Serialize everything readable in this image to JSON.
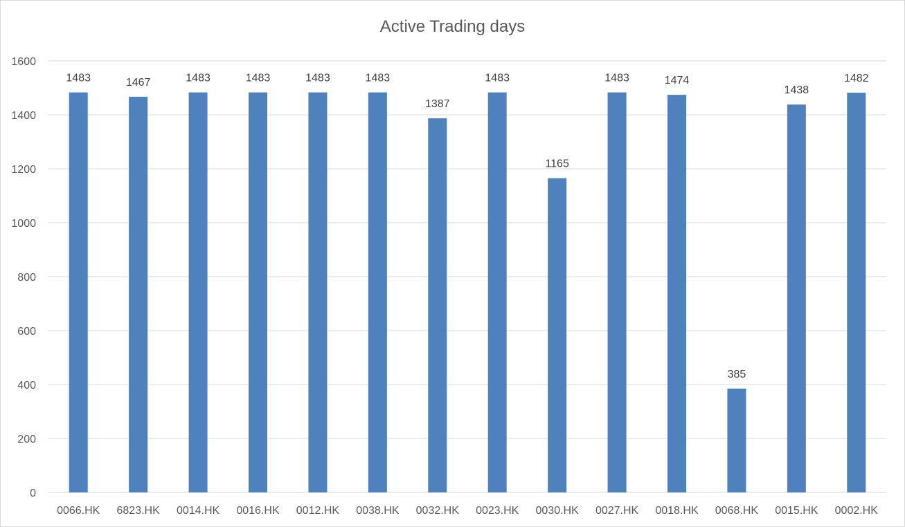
{
  "chart_data": {
    "type": "bar",
    "title": "Active Trading days",
    "xlabel": "",
    "ylabel": "",
    "categories": [
      "0066.HK",
      "6823.HK",
      "0014.HK",
      "0016.HK",
      "0012.HK",
      "0038.HK",
      "0032.HK",
      "0023.HK",
      "0030.HK",
      "0027.HK",
      "0018.HK",
      "0068.HK",
      "0015.HK",
      "0002.HK"
    ],
    "values": [
      1483,
      1467,
      1483,
      1483,
      1483,
      1483,
      1387,
      1483,
      1165,
      1483,
      1474,
      385,
      1438,
      1482
    ],
    "ylim": [
      0,
      1600
    ],
    "yticks": [
      0,
      200,
      400,
      600,
      800,
      1000,
      1200,
      1400,
      1600
    ],
    "grid": true,
    "legend": "none",
    "data_labels": true,
    "bar_color": "#4f81bd"
  }
}
